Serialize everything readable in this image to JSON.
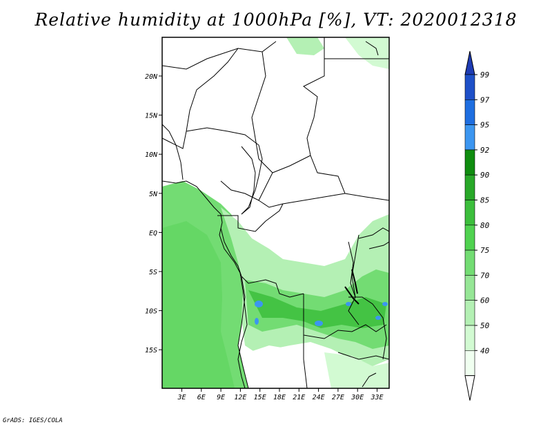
{
  "title": "Relative humidity at 1000hPa [%], VT: 2020012318",
  "credit": "GrADS: IGES/COLA",
  "map": {
    "lat_labels": [
      "20N",
      "15N",
      "10N",
      "5N",
      "EQ",
      "5S",
      "10S",
      "15S"
    ],
    "lon_labels": [
      "3E",
      "6E",
      "9E",
      "12E",
      "15E",
      "18E",
      "21E",
      "24E",
      "27E",
      "30E",
      "33E"
    ],
    "lon_range": [
      0,
      35
    ],
    "lat_range": [
      -20,
      24
    ]
  },
  "colorbar": {
    "levels": [
      "99",
      "97",
      "95",
      "92",
      "90",
      "85",
      "80",
      "75",
      "70",
      "60",
      "50",
      "40"
    ],
    "colors": [
      "#1e50c8",
      "#1e6ee0",
      "#3c96f0",
      "#0f8c0f",
      "#28a828",
      "#3cbe3c",
      "#50d250",
      "#73dc73",
      "#96e696",
      "#b4f0b4",
      "#d2fad2",
      "#f0fff0"
    ],
    "top_arrow_color": "#1e3cb4",
    "bottom_arrow_color": "#ffffff"
  }
}
